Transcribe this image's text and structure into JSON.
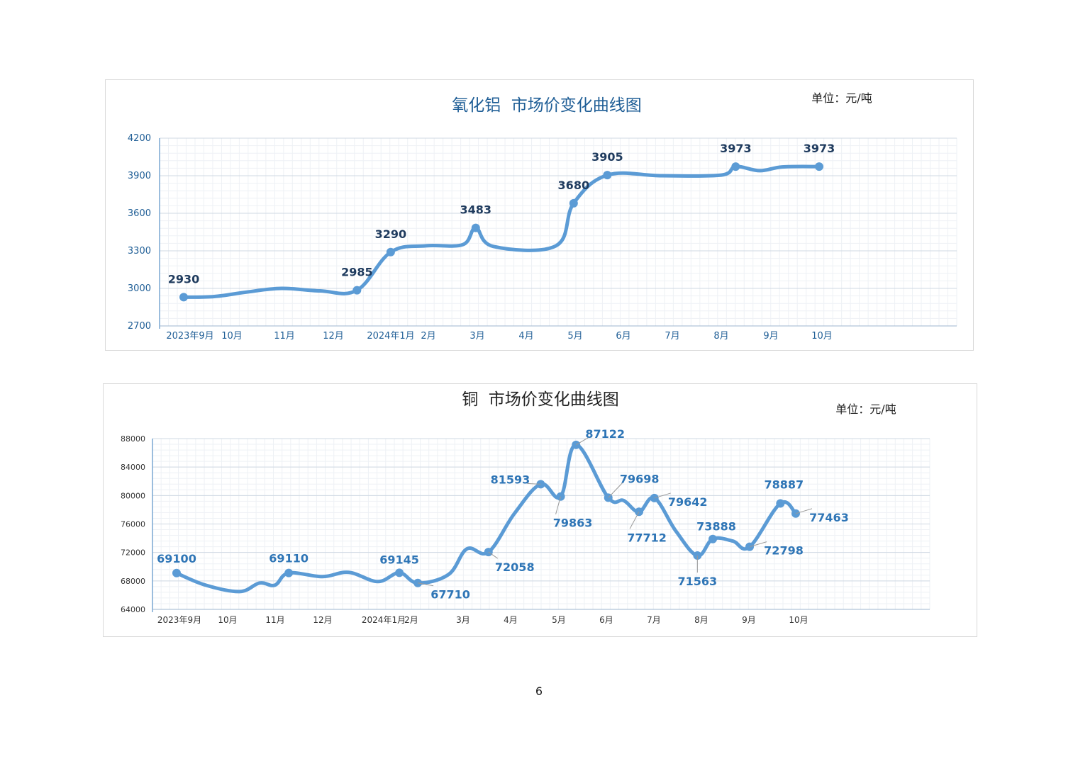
{
  "page_number": "6",
  "colors": {
    "line": "#5b9bd5",
    "title1": "#1f5e96",
    "tick1": "#1f5e96",
    "label1": "#1f3b5e",
    "label2": "#2e75b6",
    "grid_major": "#cfd8e3",
    "grid_minor": "#eef1f5"
  },
  "chart_data": [
    {
      "type": "line",
      "title": "氧化铝  市场价变化曲线图",
      "unit": "单位：元/吨",
      "xlabel": "",
      "ylabel": "",
      "ylim": [
        2700,
        4200
      ],
      "yticks": [
        "4200",
        "3900",
        "3600",
        "3300",
        "3000",
        "2700"
      ],
      "xticks": [
        "2023年9月",
        "10月",
        "11月",
        "12月",
        "2024年1月",
        "2月",
        "3月",
        "4月",
        "5月",
        "6月",
        "7月",
        "8月",
        "9月",
        "10月"
      ],
      "grid": true,
      "legend": "none",
      "series": [
        {
          "values": [
            {
              "x": "2023-09-01",
              "y": 2930,
              "label": "2930"
            },
            {
              "x": "2023-09-20",
              "y": 2935
            },
            {
              "x": "2023-10-10",
              "y": 2970
            },
            {
              "x": "2023-11-01",
              "y": 3000
            },
            {
              "x": "2023-11-25",
              "y": 2980
            },
            {
              "x": "2023-12-18",
              "y": 2985,
              "label": "2985"
            },
            {
              "x": "2024-01-08",
              "y": 3290,
              "label": "3290"
            },
            {
              "x": "2024-01-30",
              "y": 3340
            },
            {
              "x": "2024-02-22",
              "y": 3350
            },
            {
              "x": "2024-03-01",
              "y": 3483,
              "label": "3483"
            },
            {
              "x": "2024-03-12",
              "y": 3335
            },
            {
              "x": "2024-04-20",
              "y": 3340
            },
            {
              "x": "2024-05-01",
              "y": 3680,
              "label": "3680"
            },
            {
              "x": "2024-05-22",
              "y": 3905,
              "label": "3905"
            },
            {
              "x": "2024-06-25",
              "y": 3900
            },
            {
              "x": "2024-08-01",
              "y": 3905
            },
            {
              "x": "2024-08-10",
              "y": 3973,
              "label": "3973"
            },
            {
              "x": "2024-08-25",
              "y": 3940
            },
            {
              "x": "2024-09-08",
              "y": 3970
            },
            {
              "x": "2024-10-01",
              "y": 3973,
              "label": "3973"
            }
          ]
        }
      ]
    },
    {
      "type": "line",
      "title": "铜  市场价变化曲线图",
      "unit": "单位：元/吨",
      "xlabel": "",
      "ylabel": "",
      "ylim": [
        64000,
        88000
      ],
      "yticks": [
        "88000",
        "84000",
        "80000",
        "76000",
        "72000",
        "68000",
        "64000"
      ],
      "xticks": [
        "2023年9月",
        "10月",
        "11月",
        "12月",
        "2024年1月",
        "2月",
        "3月",
        "4月",
        "5月",
        "6月",
        "7月",
        "8月",
        "9月",
        "10月"
      ],
      "grid": true,
      "legend": "none",
      "series": [
        {
          "values": [
            {
              "x": "2023-09-01",
              "y": 69100,
              "label": "69100"
            },
            {
              "x": "2023-09-20",
              "y": 67400
            },
            {
              "x": "2023-10-12",
              "y": 66500
            },
            {
              "x": "2023-10-25",
              "y": 67700
            },
            {
              "x": "2023-11-04",
              "y": 67400
            },
            {
              "x": "2023-11-13",
              "y": 69110,
              "label": "69110"
            },
            {
              "x": "2023-12-05",
              "y": 68600
            },
            {
              "x": "2023-12-22",
              "y": 69200
            },
            {
              "x": "2024-01-10",
              "y": 67900
            },
            {
              "x": "2024-01-24",
              "y": 69145,
              "label": "69145"
            },
            {
              "x": "2024-02-05",
              "y": 67710,
              "label": "67710"
            },
            {
              "x": "2024-02-25",
              "y": 68900
            },
            {
              "x": "2024-03-08",
              "y": 72500
            },
            {
              "x": "2024-03-22",
              "y": 72058,
              "label": "72058"
            },
            {
              "x": "2024-04-08",
              "y": 77500
            },
            {
              "x": "2024-04-25",
              "y": 81593,
              "label": "81593"
            },
            {
              "x": "2024-05-08",
              "y": 79863,
              "label": "79863"
            },
            {
              "x": "2024-05-18",
              "y": 87122,
              "label": "87122"
            },
            {
              "x": "2024-06-08",
              "y": 79698,
              "label": "79698"
            },
            {
              "x": "2024-06-18",
              "y": 79300
            },
            {
              "x": "2024-06-28",
              "y": 77712,
              "label": "77712"
            },
            {
              "x": "2024-07-08",
              "y": 79642,
              "label": "79642"
            },
            {
              "x": "2024-07-22",
              "y": 75000
            },
            {
              "x": "2024-08-05",
              "y": 71563,
              "label": "71563"
            },
            {
              "x": "2024-08-15",
              "y": 73888,
              "label": "73888"
            },
            {
              "x": "2024-08-28",
              "y": 73600
            },
            {
              "x": "2024-09-08",
              "y": 72798,
              "label": "72798"
            },
            {
              "x": "2024-09-28",
              "y": 78887,
              "label": "78887"
            },
            {
              "x": "2024-10-08",
              "y": 77463,
              "label": "77463"
            }
          ]
        }
      ]
    }
  ]
}
